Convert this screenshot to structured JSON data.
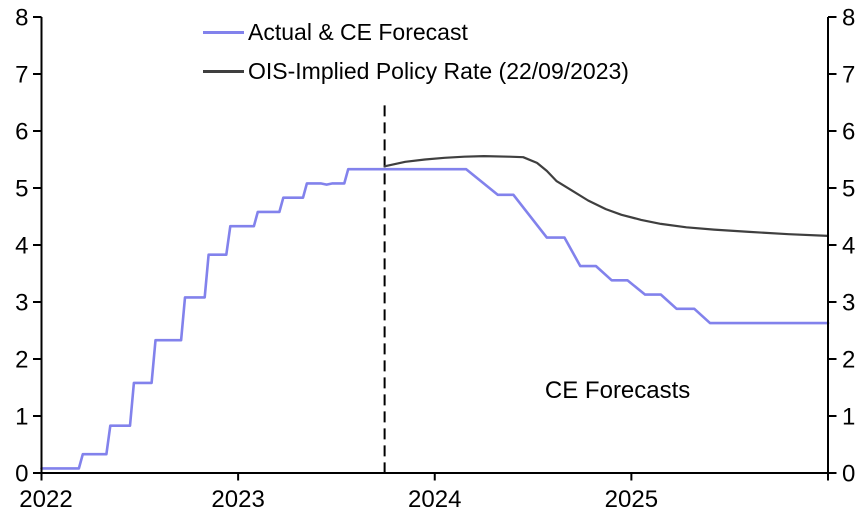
{
  "chart_data": {
    "type": "line",
    "title": "",
    "xlabel": "",
    "ylabel": "",
    "grid": false,
    "background": "#ffffff",
    "axis_color": "#000000",
    "x_axis": {
      "lim": [
        2022,
        2026
      ],
      "ticks": [
        2022,
        2023,
        2024,
        2025,
        2026
      ],
      "tick_labels": [
        "2022",
        "2023",
        "2024",
        "2025",
        ""
      ]
    },
    "y_axis": {
      "lim": [
        0,
        8
      ],
      "ticks": [
        0,
        1,
        2,
        3,
        4,
        5,
        6,
        7,
        8
      ],
      "tick_labels": [
        "0",
        "1",
        "2",
        "3",
        "4",
        "5",
        "6",
        "7",
        "8"
      ],
      "sides": "both"
    },
    "series": [
      {
        "name": "Actual & CE Forecast",
        "color": "#8282ec",
        "width": 2.6,
        "points": [
          [
            2022.0,
            0.08
          ],
          [
            2022.19,
            0.08
          ],
          [
            2022.21,
            0.33
          ],
          [
            2022.33,
            0.33
          ],
          [
            2022.35,
            0.83
          ],
          [
            2022.45,
            0.83
          ],
          [
            2022.47,
            1.58
          ],
          [
            2022.56,
            1.58
          ],
          [
            2022.58,
            2.33
          ],
          [
            2022.71,
            2.33
          ],
          [
            2022.73,
            3.08
          ],
          [
            2022.83,
            3.08
          ],
          [
            2022.85,
            3.83
          ],
          [
            2022.94,
            3.83
          ],
          [
            2022.96,
            4.33
          ],
          [
            2023.08,
            4.33
          ],
          [
            2023.1,
            4.58
          ],
          [
            2023.21,
            4.58
          ],
          [
            2023.23,
            4.83
          ],
          [
            2023.33,
            4.83
          ],
          [
            2023.35,
            5.08
          ],
          [
            2023.42,
            5.08
          ],
          [
            2023.45,
            5.06
          ],
          [
            2023.48,
            5.08
          ],
          [
            2023.54,
            5.08
          ],
          [
            2023.56,
            5.33
          ],
          [
            2024.16,
            5.33
          ],
          [
            2024.32,
            4.88
          ],
          [
            2024.4,
            4.88
          ],
          [
            2024.57,
            4.13
          ],
          [
            2024.66,
            4.13
          ],
          [
            2024.74,
            3.63
          ],
          [
            2024.82,
            3.63
          ],
          [
            2024.9,
            3.38
          ],
          [
            2024.98,
            3.38
          ],
          [
            2025.07,
            3.13
          ],
          [
            2025.15,
            3.13
          ],
          [
            2025.23,
            2.88
          ],
          [
            2025.32,
            2.88
          ],
          [
            2025.4,
            2.63
          ],
          [
            2026.0,
            2.63
          ]
        ]
      },
      {
        "name": "OIS-Implied Policy Rate (22/09/2023)",
        "color": "#3f3f3f",
        "width": 2.2,
        "points": [
          [
            2023.745,
            5.38
          ],
          [
            2023.85,
            5.46
          ],
          [
            2023.95,
            5.5
          ],
          [
            2024.05,
            5.53
          ],
          [
            2024.15,
            5.55
          ],
          [
            2024.25,
            5.56
          ],
          [
            2024.38,
            5.55
          ],
          [
            2024.45,
            5.54
          ],
          [
            2024.52,
            5.44
          ],
          [
            2024.57,
            5.3
          ],
          [
            2024.62,
            5.12
          ],
          [
            2024.7,
            4.95
          ],
          [
            2024.78,
            4.78
          ],
          [
            2024.87,
            4.63
          ],
          [
            2024.95,
            4.53
          ],
          [
            2025.05,
            4.44
          ],
          [
            2025.15,
            4.37
          ],
          [
            2025.28,
            4.31
          ],
          [
            2025.42,
            4.27
          ],
          [
            2025.6,
            4.23
          ],
          [
            2025.8,
            4.19
          ],
          [
            2026.0,
            4.16
          ]
        ]
      }
    ],
    "vline": {
      "x": 2023.745,
      "y_top": 6.45,
      "style": "dashed",
      "color": "#000000"
    },
    "annotation": {
      "text": "CE Forecasts",
      "x": 2024.93,
      "y": 1.43
    },
    "legend_position": "top-center"
  }
}
